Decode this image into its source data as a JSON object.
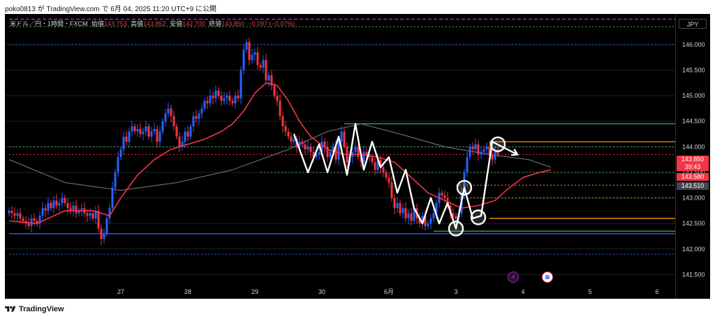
{
  "header": {
    "text": "poko0813 が TradingView.com で 6月 04, 2025 11:20 UTC+9 に公開"
  },
  "legend": {
    "symbol": "米ドル／円・1時間・FXCM",
    "open_label": "始値",
    "open": "143.753",
    "high_label": "高値",
    "high": "143.852",
    "low_label": "安値",
    "low": "142.700",
    "close_label": "終値",
    "close": "143.850",
    "change": "−0.097 (−0.07%)"
  },
  "currency": "JPY",
  "price_tags": {
    "current": "143.850",
    "countdown": "39:43",
    "level_a": "143.580",
    "level_b": "143.510"
  },
  "footer": {
    "brand": "TradingView"
  },
  "events": [
    {
      "name": "lightning-event-icon",
      "icon": "lightning-icon"
    },
    {
      "name": "us-flag-event-icon",
      "icon": "us-flag-icon"
    }
  ],
  "colors": {
    "up": "#2962ff",
    "down": "#f23645",
    "ma_fast": "#f23645",
    "ma_slow": "#787b86",
    "support": "#2962ff",
    "green_line": "#4caf50",
    "orange_line": "#ff9800",
    "drawing": "#ffffff"
  },
  "chart_data": {
    "type": "candlestick",
    "ylim": [
      141.3,
      146.6
    ],
    "y_ticks": [
      141.5,
      142.0,
      142.5,
      143.0,
      143.5,
      144.0,
      144.5,
      145.0,
      145.5,
      146.0
    ],
    "y_tick_labels": [
      "141.500",
      "142.000",
      "142.500",
      "143.000",
      "143.500",
      "144.000",
      "144.500",
      "145.000",
      "145.500",
      "146.000"
    ],
    "x_ticks": [
      {
        "label": "27",
        "bar": 40
      },
      {
        "label": "28",
        "bar": 64
      },
      {
        "label": "29",
        "bar": 88
      },
      {
        "label": "30",
        "bar": 112
      },
      {
        "label": "6月",
        "bar": 136
      },
      {
        "label": "3",
        "bar": 160
      },
      {
        "label": "4",
        "bar": 184
      },
      {
        "label": "5",
        "bar": 208
      },
      {
        "label": "6",
        "bar": 232
      }
    ],
    "bars_total": 240,
    "closes": [
      142.75,
      142.7,
      142.65,
      142.7,
      142.6,
      142.55,
      142.5,
      142.45,
      142.6,
      142.55,
      142.5,
      142.65,
      142.8,
      142.75,
      142.9,
      142.8,
      142.95,
      142.85,
      142.9,
      143.0,
      142.9,
      142.8,
      142.75,
      142.85,
      142.7,
      142.75,
      142.8,
      142.7,
      142.65,
      142.7,
      142.6,
      142.75,
      142.4,
      142.2,
      142.3,
      142.6,
      142.8,
      143.2,
      143.5,
      143.8,
      143.95,
      144.2,
      144.1,
      144.3,
      144.4,
      144.3,
      144.35,
      144.25,
      144.3,
      144.4,
      144.2,
      144.3,
      144.35,
      144.1,
      144.3,
      144.5,
      144.65,
      144.75,
      144.6,
      144.4,
      144.2,
      144.0,
      144.1,
      144.3,
      144.2,
      144.4,
      144.6,
      144.55,
      144.65,
      144.75,
      144.9,
      144.85,
      145.0,
      144.95,
      145.1,
      145.0,
      144.9,
      144.95,
      145.0,
      144.9,
      144.85,
      145.0,
      144.95,
      145.5,
      145.9,
      146.05,
      145.7,
      145.8,
      145.85,
      145.6,
      145.55,
      145.7,
      145.3,
      145.4,
      145.2,
      145.0,
      144.9,
      144.6,
      144.4,
      144.3,
      144.2,
      144.1,
      144.15,
      144.0,
      144.1,
      144.05,
      143.95,
      144.0,
      143.9,
      143.8,
      143.85,
      143.9,
      144.1,
      144.0,
      143.8,
      143.9,
      144.0,
      143.75,
      144.1,
      144.3,
      144.0,
      143.7,
      143.8,
      143.9,
      144.0,
      143.8,
      143.7,
      143.9,
      143.85,
      143.8,
      143.7,
      143.55,
      143.75,
      143.6,
      143.5,
      143.4,
      143.3,
      143.0,
      142.8,
      142.9,
      142.7,
      142.8,
      142.6,
      142.7,
      142.55,
      142.8,
      142.6,
      142.5,
      142.65,
      142.45,
      142.5,
      142.6,
      142.7,
      142.9,
      143.1,
      143.05,
      143.0,
      142.85,
      142.7,
      142.65,
      142.6,
      142.7,
      143.1,
      143.5,
      143.8,
      144.0,
      143.95,
      144.05,
      143.85,
      143.9,
      143.95,
      144.0,
      143.85,
      143.75,
      143.9,
      143.85
    ],
    "ma_fast": [
      [
        0,
        142.55
      ],
      [
        10,
        142.5
      ],
      [
        20,
        142.75
      ],
      [
        30,
        142.75
      ],
      [
        36,
        142.65
      ],
      [
        40,
        143.0
      ],
      [
        46,
        143.45
      ],
      [
        52,
        143.75
      ],
      [
        58,
        143.95
      ],
      [
        64,
        144.05
      ],
      [
        70,
        144.15
      ],
      [
        76,
        144.3
      ],
      [
        80,
        144.45
      ],
      [
        84,
        144.7
      ],
      [
        88,
        145.05
      ],
      [
        92,
        145.25
      ],
      [
        96,
        145.2
      ],
      [
        100,
        144.9
      ],
      [
        104,
        144.5
      ],
      [
        108,
        144.2
      ],
      [
        114,
        143.95
      ],
      [
        120,
        143.85
      ],
      [
        126,
        143.85
      ],
      [
        132,
        143.8
      ],
      [
        138,
        143.7
      ],
      [
        144,
        143.4
      ],
      [
        150,
        143.1
      ],
      [
        156,
        142.95
      ],
      [
        162,
        142.8
      ],
      [
        168,
        142.85
      ],
      [
        174,
        142.95
      ],
      [
        178,
        143.15
      ],
      [
        184,
        143.4
      ],
      [
        190,
        143.5
      ],
      [
        194,
        143.55
      ]
    ],
    "ma_slow": [
      [
        0,
        143.75
      ],
      [
        20,
        143.3
      ],
      [
        40,
        143.15
      ],
      [
        60,
        143.3
      ],
      [
        80,
        143.55
      ],
      [
        100,
        143.95
      ],
      [
        114,
        144.3
      ],
      [
        126,
        144.45
      ],
      [
        140,
        144.25
      ],
      [
        156,
        144.0
      ],
      [
        172,
        143.85
      ],
      [
        186,
        143.75
      ],
      [
        194,
        143.6
      ]
    ],
    "horizontal_lines": [
      {
        "color": "blue",
        "style": "solid",
        "price": 142.3,
        "from_bar": 0
      },
      {
        "color": "blue",
        "style": "dotted",
        "price": 146.0,
        "from_bar": 0
      },
      {
        "color": "blue",
        "style": "dotted",
        "price": 141.9,
        "from_bar": 0
      },
      {
        "color": "magenta",
        "style": "dashed",
        "price": 146.5,
        "from_bar": 0
      },
      {
        "color": "green",
        "style": "dotted",
        "price": 146.35,
        "from_bar": 0
      },
      {
        "color": "green",
        "style": "dotted",
        "price": 144.0,
        "from_bar": 0
      },
      {
        "color": "green",
        "style": "dotted",
        "price": 143.5,
        "from_bar": 90
      },
      {
        "color": "green",
        "style": "solid",
        "price": 144.45,
        "from_bar": 120
      },
      {
        "color": "green",
        "style": "solid",
        "price": 142.35,
        "from_bar": 152
      },
      {
        "color": "orange",
        "style": "solid",
        "price": 144.1,
        "from_bar": 172
      },
      {
        "color": "orange",
        "style": "solid",
        "price": 142.6,
        "from_bar": 172
      },
      {
        "color": "orange",
        "style": "dotted",
        "price": 143.0,
        "from_bar": 160
      },
      {
        "color": "orange",
        "style": "dotted",
        "price": 143.25,
        "from_bar": 160
      },
      {
        "color": "red",
        "style": "dotted",
        "price": 143.85,
        "from_bar": 0
      }
    ],
    "drawing_path": [
      [
        102,
        144.25
      ],
      [
        107,
        143.5
      ],
      [
        111,
        144.05
      ],
      [
        114,
        143.5
      ],
      [
        118,
        144.2
      ],
      [
        121,
        143.45
      ],
      [
        124,
        144.45
      ],
      [
        127,
        143.55
      ],
      [
        130,
        144.1
      ],
      [
        133,
        143.6
      ],
      [
        136,
        143.8
      ],
      [
        139,
        143.1
      ],
      [
        142,
        143.55
      ],
      [
        145,
        142.8
      ],
      [
        148,
        142.5
      ],
      [
        151,
        143.0
      ],
      [
        154,
        142.5
      ],
      [
        157,
        142.9
      ],
      [
        160,
        142.4
      ],
      [
        163,
        143.2
      ],
      [
        166,
        142.6
      ],
      [
        169,
        142.65
      ],
      [
        173,
        144.1
      ],
      [
        182,
        143.85
      ]
    ],
    "circles": [
      [
        160,
        142.4
      ],
      [
        163,
        143.2
      ],
      [
        168,
        142.62
      ],
      [
        175,
        144.05
      ]
    ]
  }
}
